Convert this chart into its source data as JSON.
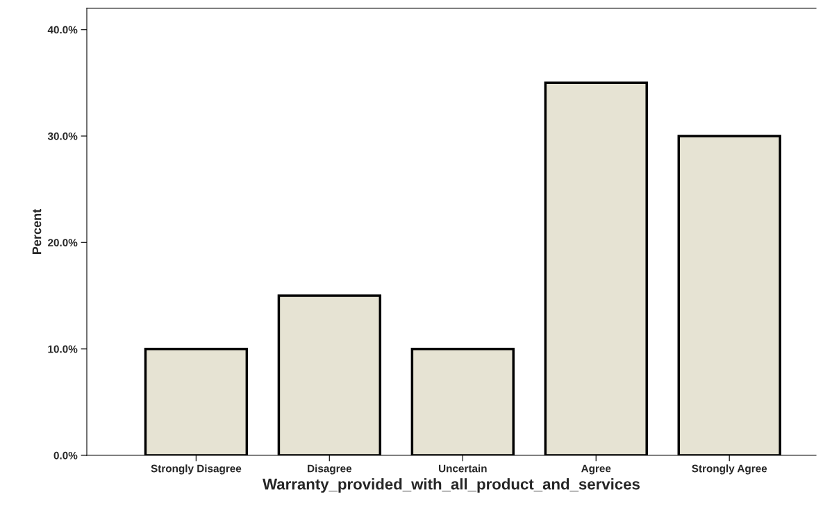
{
  "chart_data": {
    "type": "bar",
    "xlabel": "Warranty_provided_with_all_product_and_services",
    "ylabel": "Percent",
    "categories": [
      "Strongly Disagree",
      "Disagree",
      "Uncertain",
      "Agree",
      "Strongly Agree"
    ],
    "values": [
      10,
      15,
      10,
      35,
      30
    ],
    "color": "#e6e3d3",
    "ylim": [
      0,
      42
    ],
    "yticks": [
      {
        "value": 0,
        "label": "0.0%"
      },
      {
        "value": 10,
        "label": "10.0%"
      },
      {
        "value": 20,
        "label": "20.0%"
      },
      {
        "value": 30,
        "label": "30.0%"
      },
      {
        "value": 40,
        "label": "40.0%"
      }
    ],
    "grid": false,
    "legend": false
  }
}
